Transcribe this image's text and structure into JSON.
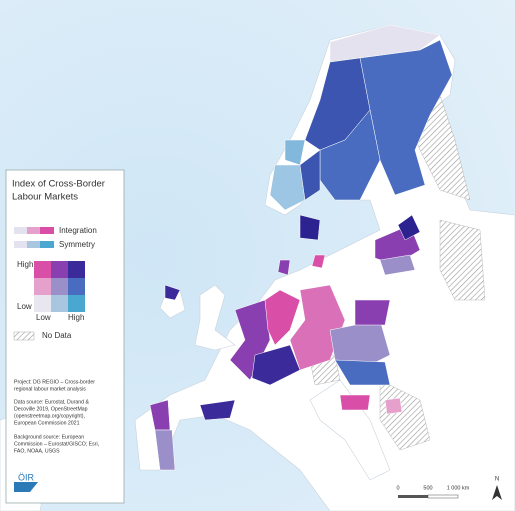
{
  "legend": {
    "title": [
      "Index of Cross-Border",
      "Labour Markets"
    ],
    "integration": "Integration",
    "symmetry": "Symmetry",
    "high_y": "High",
    "low_y": "Low",
    "low_x": "Low",
    "high_x": "High",
    "no_data": "No Data"
  },
  "notes": {
    "project": [
      "Project: DG REGIO – Cross-border",
      "regional labour market analysis"
    ],
    "data_source": [
      "Data source: Eurostat, Durand &",
      "Decoville 2019, OpenStreetMap",
      "(openstreetmap.org/copyright),",
      "European Commission 2021"
    ],
    "background_source": [
      "Background source: European",
      "Commission – Eurostat/GISCO; Esri,",
      "FAO, NOAA, USGS"
    ]
  },
  "logo": "ÖIR",
  "scale": {
    "zero": "0",
    "mid": "500",
    "end": "1 000 km"
  },
  "north": "N"
}
